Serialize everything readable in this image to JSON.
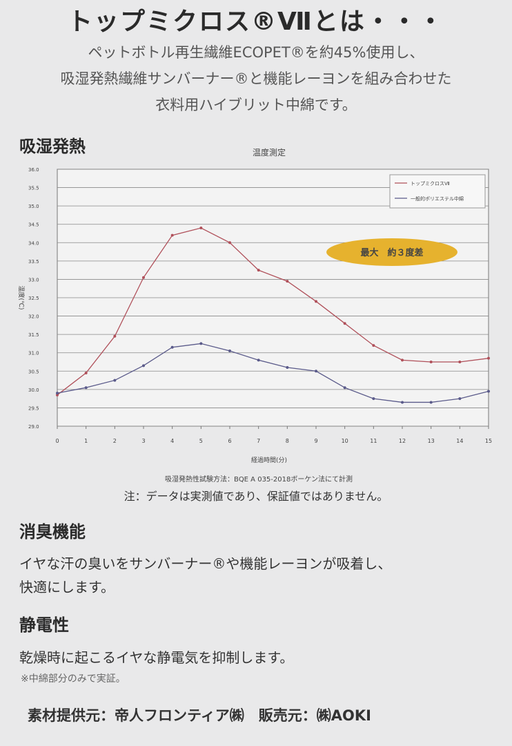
{
  "header": {
    "title": "トップミクロス®Ⅶとは・・・",
    "intro": [
      "ペットボトル再生繊維ECOPET®を約45%使用し、",
      "吸湿発熱繊維サンバーナー®と機能レーヨンを組み合わせた",
      "衣料用ハイブリット中綿です。"
    ]
  },
  "sections": [
    {
      "heading": "吸湿発熱",
      "note": "注：データは実測値であり、保証値ではありません。"
    },
    {
      "heading": "消臭機能",
      "lines": [
        "イヤな汗の臭いをサンバーナー®や機能レーヨンが吸着し、",
        "快適にします。"
      ]
    },
    {
      "heading": "静電性",
      "lines": [
        "乾燥時に起こるイヤな静電気を抑制します。"
      ],
      "footnote": "※中綿部分のみで実証。"
    }
  ],
  "footer": "素材提供元：帝人フロンティア㈱　販売元：㈱AOKI",
  "chart_data": {
    "type": "line",
    "title": "温度測定",
    "x_label": "経過時間(分)",
    "y_label": "温度(℃)",
    "method": "吸湿発熱性試験方法：BQE A 035-2018ボーケン法にて計測",
    "annotation": "最大　約３度差",
    "x": [
      0,
      1,
      2,
      3,
      4,
      5,
      6,
      7,
      8,
      9,
      10,
      11,
      12,
      13,
      14,
      15
    ],
    "xlim": [
      0,
      15
    ],
    "xticks": [
      0,
      1,
      2,
      3,
      4,
      5,
      6,
      7,
      8,
      9,
      10,
      11,
      12,
      13,
      14,
      15
    ],
    "ylim": [
      29,
      36
    ],
    "yticks": [
      {
        "value": 29,
        "label": "29.0"
      },
      {
        "value": 29.5,
        "label": "29.5"
      },
      {
        "value": 30,
        "label": "30.0"
      },
      {
        "value": 30.5,
        "label": "30.5"
      },
      {
        "value": 31,
        "label": "31.0"
      },
      {
        "value": 31.5,
        "label": "31.5"
      },
      {
        "value": 32,
        "label": "32.0"
      },
      {
        "value": 32.5,
        "label": "32.5"
      },
      {
        "value": 33,
        "label": "33.0"
      },
      {
        "value": 33.5,
        "label": "33.5"
      },
      {
        "value": 34,
        "label": "34.0"
      },
      {
        "value": 34.5,
        "label": "34.5"
      },
      {
        "value": 35,
        "label": "35.0"
      },
      {
        "value": 35.5,
        "label": "35.5"
      },
      {
        "value": 36,
        "label": "36.0"
      }
    ],
    "grid": true,
    "legend": "upper right",
    "series": [
      {
        "name": "トップミクロスⅦ",
        "color": "#b0505a",
        "values": [
          29.85,
          30.45,
          31.45,
          33.05,
          34.2,
          34.4,
          34.0,
          33.25,
          32.95,
          32.4,
          31.8,
          31.2,
          30.8,
          30.75,
          30.75,
          30.85
        ]
      },
      {
        "name": "一般的ポリエステル中綿",
        "color": "#5a5a8a",
        "values": [
          29.9,
          30.05,
          30.25,
          30.65,
          31.15,
          31.25,
          31.05,
          30.8,
          30.6,
          30.5,
          30.05,
          29.75,
          29.65,
          29.65,
          29.75,
          29.95
        ]
      }
    ]
  }
}
